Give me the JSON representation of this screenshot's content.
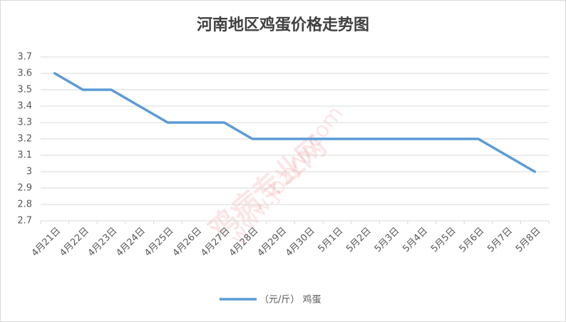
{
  "chart_data": {
    "type": "line",
    "title": "河南地区鸡蛋价格走势图",
    "watermark": [
      "鸡病专业网",
      "www.jbzyw.com"
    ],
    "categories": [
      "4月21日",
      "4月22日",
      "4月23日",
      "4月24日",
      "4月25日",
      "4月26日",
      "4月27日",
      "4月28日",
      "4月29日",
      "4月30日",
      "5月1日",
      "5月2日",
      "5月3日",
      "5月4日",
      "5月5日",
      "5月6日",
      "5月7日",
      "5月8日"
    ],
    "series": [
      {
        "name": "（元/斤） 鸡蛋",
        "color": "#5b9bd5",
        "values": [
          3.6,
          3.5,
          3.5,
          3.4,
          3.3,
          3.3,
          3.3,
          3.2,
          3.2,
          3.2,
          3.2,
          3.2,
          3.2,
          3.2,
          3.2,
          3.2,
          3.1,
          3.0
        ]
      }
    ],
    "ylim": [
      2.7,
      3.7
    ],
    "yticks": [
      2.7,
      2.8,
      2.9,
      3,
      3.1,
      3.2,
      3.3,
      3.4,
      3.5,
      3.6,
      3.7
    ],
    "grid": true,
    "legend": "bottom"
  }
}
